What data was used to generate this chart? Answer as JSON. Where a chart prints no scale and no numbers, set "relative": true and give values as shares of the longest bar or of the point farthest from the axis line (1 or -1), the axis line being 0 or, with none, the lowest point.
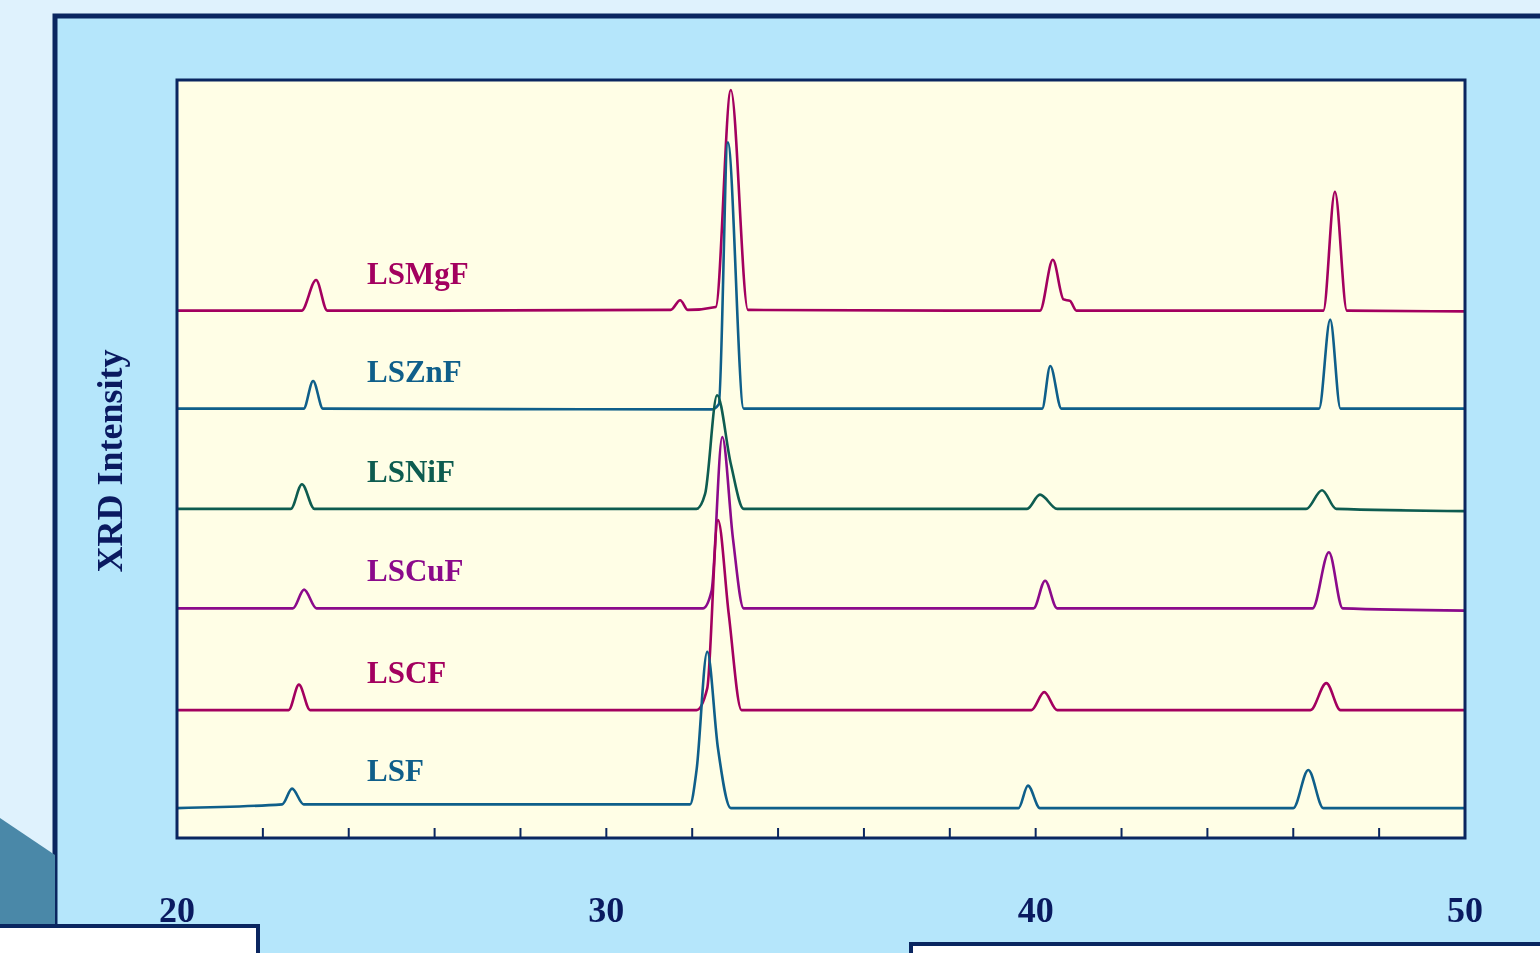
{
  "chart_data": {
    "type": "line",
    "ylabel": "XRD Intensity",
    "relative": true,
    "xlim": [
      20,
      50
    ],
    "xticks": [
      20,
      {
        "value": 22,
        "label": null
      },
      {
        "value": 24,
        "label": null
      },
      {
        "value": 26,
        "label": null
      },
      {
        "value": 28,
        "label": null
      },
      30,
      {
        "value": 32,
        "label": null
      },
      {
        "value": 34,
        "label": null
      },
      {
        "value": 36,
        "label": null
      },
      {
        "value": 38,
        "label": null
      },
      40,
      {
        "value": 42,
        "label": null
      },
      {
        "value": 44,
        "label": null
      },
      {
        "value": 46,
        "label": null
      },
      {
        "value": 48,
        "label": null
      },
      50
    ],
    "grid": false,
    "marker": "none",
    "line_style": "solid",
    "series": [
      {
        "name": "LSMgF",
        "color": "#a3005f",
        "x": [
          20,
          22.9,
          23.24,
          23.5,
          31.5,
          31.72,
          31.9,
          32.55,
          32.9,
          33.3,
          40.1,
          40.4,
          40.65,
          40.8,
          40.95,
          46.7,
          46.97,
          47.25,
          50
        ],
        "values": [
          0.705,
          0.705,
          0.746,
          0.705,
          0.706,
          0.719,
          0.706,
          0.71,
          1.0,
          0.706,
          0.705,
          0.773,
          0.72,
          0.718,
          0.705,
          0.705,
          0.864,
          0.705,
          0.704
        ]
      },
      {
        "name": "LSZnF",
        "color": "#0f5f8a",
        "x": [
          20,
          22.95,
          23.17,
          23.4,
          32.45,
          32.62,
          32.83,
          33.2,
          40.15,
          40.34,
          40.6,
          46.6,
          46.86,
          47.1,
          50
        ],
        "values": [
          0.574,
          0.574,
          0.611,
          0.574,
          0.573,
          0.58,
          0.93,
          0.574,
          0.574,
          0.631,
          0.574,
          0.574,
          0.693,
          0.574,
          0.574
        ]
      },
      {
        "name": "LSNiF",
        "color": "#0e5c50",
        "x": [
          20,
          22.65,
          22.91,
          23.2,
          32.1,
          32.3,
          32.58,
          32.9,
          33.2,
          39.8,
          40.1,
          40.5,
          46.3,
          46.67,
          47.0,
          50
        ],
        "values": [
          0.44,
          0.44,
          0.473,
          0.44,
          0.44,
          0.46,
          0.592,
          0.5,
          0.44,
          0.44,
          0.459,
          0.44,
          0.44,
          0.465,
          0.44,
          0.437
        ]
      },
      {
        "name": "LSCuF",
        "color": "#8b0a8b",
        "x": [
          20,
          22.7,
          22.96,
          23.25,
          32.25,
          32.45,
          32.7,
          32.95,
          33.2,
          39.95,
          40.22,
          40.5,
          46.45,
          46.83,
          47.15,
          50
        ],
        "values": [
          0.307,
          0.307,
          0.332,
          0.307,
          0.307,
          0.33,
          0.536,
          0.4,
          0.307,
          0.307,
          0.344,
          0.307,
          0.307,
          0.382,
          0.307,
          0.304
        ]
      },
      {
        "name": "LSCF",
        "color": "#a3005f",
        "x": [
          20,
          22.6,
          22.84,
          23.1,
          32.1,
          32.35,
          32.6,
          32.85,
          33.15,
          39.9,
          40.2,
          40.5,
          46.4,
          46.77,
          47.1,
          50
        ],
        "values": [
          0.171,
          0.171,
          0.205,
          0.171,
          0.171,
          0.2,
          0.425,
          0.3,
          0.171,
          0.171,
          0.195,
          0.171,
          0.171,
          0.207,
          0.171,
          0.171
        ]
      },
      {
        "name": "LSF",
        "color": "#0f5f8a",
        "x": [
          20,
          22.45,
          22.68,
          22.95,
          31.95,
          32.1,
          32.35,
          32.6,
          32.9,
          39.6,
          39.82,
          40.1,
          46.0,
          46.35,
          46.7,
          50
        ],
        "values": [
          0.04,
          0.045,
          0.066,
          0.045,
          0.045,
          0.09,
          0.249,
          0.12,
          0.04,
          0.04,
          0.07,
          0.04,
          0.04,
          0.091,
          0.04,
          0.04
        ]
      }
    ]
  }
}
